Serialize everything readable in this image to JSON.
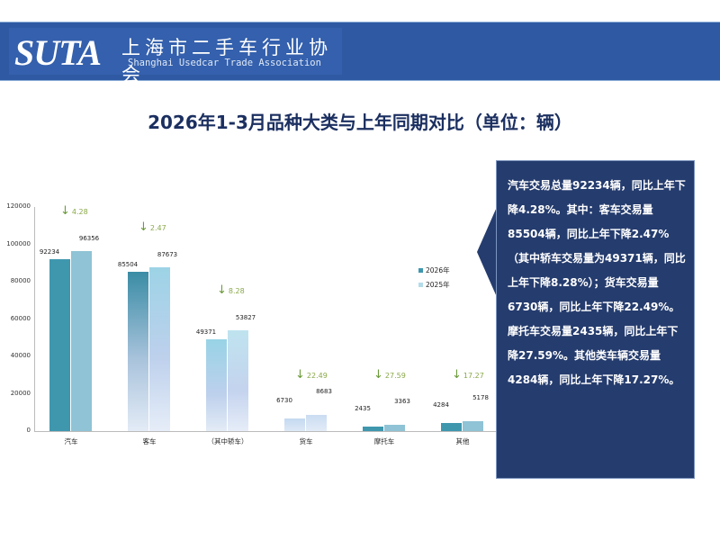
{
  "header": {
    "logo_text": "SUTA",
    "org_name_cn": "上海市二手车行业协会",
    "org_name_en": "Shanghai Usedcar Trade Association"
  },
  "title": "2026年1-3月品种大类与上年同期对比（单位：辆）",
  "chart_data": {
    "type": "bar",
    "title": "2026年1-3月品种大类与上年同期对比（单位：辆）",
    "categories": [
      "汽车",
      "客车",
      "（其中轿车）",
      "货车",
      "摩托车",
      "其他"
    ],
    "series": [
      {
        "name": "2026年",
        "values": [
          92234,
          85504,
          49371,
          6730,
          2435,
          4284
        ]
      },
      {
        "name": "2025年",
        "values": [
          96356,
          87673,
          53827,
          8683,
          3363,
          5178
        ]
      }
    ],
    "yoy_decline_pct": [
      4.28,
      2.47,
      8.28,
      22.49,
      27.59,
      17.27
    ],
    "ylim": [
      0,
      120000
    ],
    "yticks": [
      0,
      20000,
      40000,
      60000,
      80000,
      100000,
      120000
    ],
    "legend_position": "right",
    "grid": false,
    "xlabel": "",
    "ylabel": ""
  },
  "legend": [
    "2026年",
    "2025年"
  ],
  "colors": {
    "series_2026": "#3f97ae",
    "series_2025": "#8fc3d5",
    "decline": "#8aa84a",
    "callout_bg": "#253c6e",
    "title": "#1b2f60"
  },
  "callout": {
    "text": "汽车交易总量92234辆，同比上年下降4.28%。其中：客车交易量85504辆，同比上年下降2.47%（其中轿车交易量为49371辆，同比上年下降8.28%）；货车交易量6730辆，同比上年下降22.49%。摩托车交易量2435辆，同比上年下降27.59%。其他类车辆交易量4284辆，同比上年下降17.27%。"
  }
}
